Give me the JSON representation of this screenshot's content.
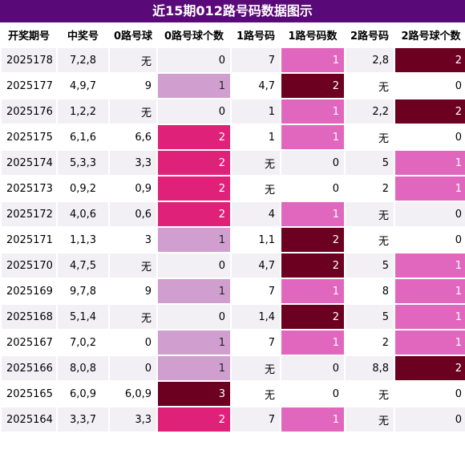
{
  "title": "近15期012路号码数据图示",
  "colors": {
    "header_bg": "#5a0a78",
    "row_odd": "#f2f0f5",
    "row_even": "#ffffff",
    "count_0": "",
    "count_1_light": "#d09fd0",
    "count_1_pink": "#e067bd",
    "count_2_magenta": "#e0217a",
    "count_2_dark": "#6b0020",
    "count_3_dark": "#6b0020"
  },
  "chart_data": {
    "type": "table",
    "columns": [
      "开奖期号",
      "中奖号",
      "0路号球",
      "0路号球个数",
      "1路号码",
      "1路号码数",
      "2路号码",
      "2路号球个数"
    ],
    "rows": [
      [
        "2025178",
        "7,2,8",
        "无",
        "0",
        "7",
        "1",
        "2,8",
        "2"
      ],
      [
        "2025177",
        "4,9,7",
        "9",
        "1",
        "4,7",
        "2",
        "无",
        "0"
      ],
      [
        "2025176",
        "1,2,2",
        "无",
        "0",
        "1",
        "1",
        "2,2",
        "2"
      ],
      [
        "2025175",
        "6,1,6",
        "6,6",
        "2",
        "1",
        "1",
        "无",
        "0"
      ],
      [
        "2025174",
        "5,3,3",
        "3,3",
        "2",
        "无",
        "0",
        "5",
        "1"
      ],
      [
        "2025173",
        "0,9,2",
        "0,9",
        "2",
        "无",
        "0",
        "2",
        "1"
      ],
      [
        "2025172",
        "4,0,6",
        "0,6",
        "2",
        "4",
        "1",
        "无",
        "0"
      ],
      [
        "2025171",
        "1,1,3",
        "3",
        "1",
        "1,1",
        "2",
        "无",
        "0"
      ],
      [
        "2025170",
        "4,7,5",
        "无",
        "0",
        "4,7",
        "2",
        "5",
        "1"
      ],
      [
        "2025169",
        "9,7,8",
        "9",
        "1",
        "7",
        "1",
        "8",
        "1"
      ],
      [
        "2025168",
        "5,1,4",
        "无",
        "0",
        "1,4",
        "2",
        "5",
        "1"
      ],
      [
        "2025167",
        "7,0,2",
        "0",
        "1",
        "7",
        "1",
        "2",
        "1"
      ],
      [
        "2025166",
        "8,0,8",
        "0",
        "1",
        "无",
        "0",
        "8,8",
        "2"
      ],
      [
        "2025165",
        "6,0,9",
        "6,0,9",
        "3",
        "无",
        "0",
        "无",
        "0"
      ],
      [
        "2025164",
        "3,3,7",
        "3,3",
        "2",
        "7",
        "1",
        "无",
        "0"
      ]
    ]
  }
}
